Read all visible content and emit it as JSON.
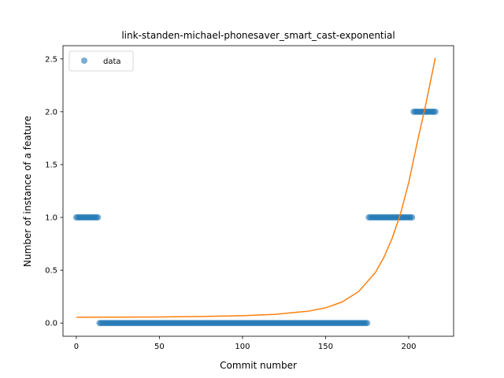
{
  "chart_data": {
    "type": "scatter",
    "title": "link-standen-michael-phonesaver_smart_cast-exponential",
    "xlabel": "Commit number",
    "ylabel": "Number of instance of a feature",
    "xlim": [
      -8,
      227
    ],
    "ylim": [
      -0.125,
      2.625
    ],
    "xticks": [
      0,
      50,
      100,
      150,
      200
    ],
    "yticks": [
      0.0,
      0.5,
      1.0,
      1.5,
      2.0,
      2.5
    ],
    "ytick_labels": [
      "0.0",
      "0.5",
      "1.0",
      "1.5",
      "2.0",
      "2.5"
    ],
    "grid": false,
    "legend": {
      "placement": "upper-left",
      "entries": [
        "data"
      ]
    },
    "colors": {
      "data": "#1f77b4",
      "fit": "#ff7f0e"
    },
    "series": [
      {
        "name": "data",
        "kind": "scatter",
        "segments": [
          {
            "x_start": 0,
            "x_end": 13,
            "y": 1
          },
          {
            "x_start": 14,
            "x_end": 175,
            "y": 0
          },
          {
            "x_start": 176,
            "x_end": 202,
            "y": 1
          },
          {
            "x_start": 203,
            "x_end": 216,
            "y": 2
          }
        ]
      },
      {
        "kind": "line",
        "x": [
          0,
          25,
          50,
          75,
          100,
          120,
          140,
          150,
          160,
          170,
          180,
          185,
          190,
          195,
          200,
          205,
          210,
          216
        ],
        "y": [
          0.055,
          0.056,
          0.058,
          0.062,
          0.07,
          0.083,
          0.113,
          0.144,
          0.2,
          0.3,
          0.48,
          0.62,
          0.8,
          1.03,
          1.33,
          1.7,
          2.05,
          2.51
        ]
      }
    ]
  }
}
